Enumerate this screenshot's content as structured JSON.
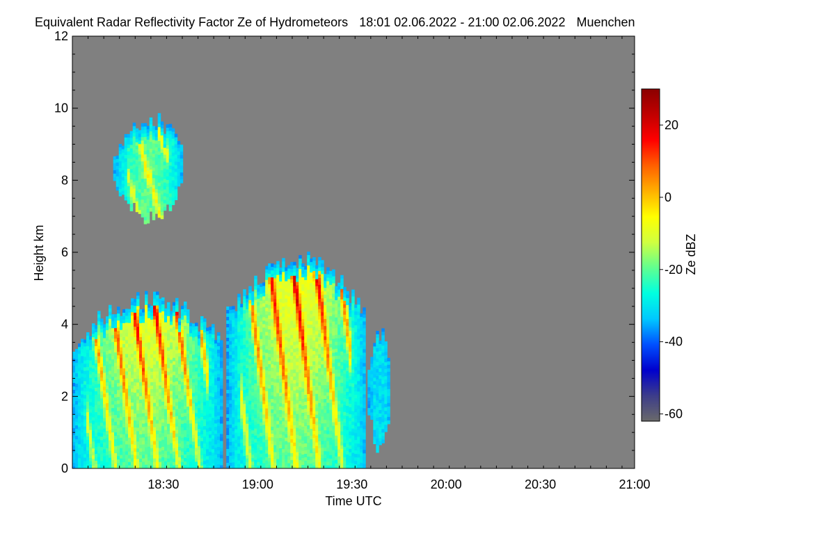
{
  "header": {
    "title": "Equivalent Radar Reflectivity Factor Ze of Hydrometeors",
    "time_range": "18:01 02.06.2022 - 21:00 02.06.2022",
    "location": "Muenchen"
  },
  "colors": {
    "background": "#ffffff",
    "no_signal": "#808080",
    "colormap": [
      "#6a6a6a",
      "#3c3c8a",
      "#0000cd",
      "#0050ff",
      "#00c8ff",
      "#00ffe0",
      "#60ff90",
      "#d0ff40",
      "#ffff00",
      "#ffb000",
      "#ff6000",
      "#ff0000",
      "#c00000",
      "#8b0000"
    ]
  },
  "chart_data": {
    "type": "heatmap",
    "title": "Equivalent Radar Reflectivity Factor Ze of Hydrometeors",
    "xlabel": "Time UTC",
    "ylabel": "Height km",
    "colorbar_label": "Ze dBZ",
    "x_ticks": [
      "18:30",
      "19:00",
      "19:30",
      "20:00",
      "20:30",
      "21:00"
    ],
    "x_range": [
      "18:01",
      "21:00"
    ],
    "y_ticks": [
      0,
      2,
      4,
      6,
      8,
      10,
      12
    ],
    "ylim": [
      0,
      12
    ],
    "colorbar_ticks": [
      20,
      0,
      -20,
      -40,
      -60
    ],
    "colorbar_range": [
      -62,
      30
    ],
    "echo_regions": [
      {
        "name": "upper cloud",
        "t_start": "18:14",
        "t_end": "18:36",
        "h_bottom": 7.0,
        "h_top": 9.7,
        "max_dbz": -5
      },
      {
        "name": "precipitation cell 1",
        "t_start": "18:01",
        "t_end": "18:48",
        "h_bottom": 0,
        "h_top": 4.7,
        "max_dbz": 22
      },
      {
        "name": "precipitation cell 2",
        "t_start": "18:50",
        "t_end": "19:34",
        "h_bottom": 0,
        "h_top": 5.8,
        "max_dbz": 25
      },
      {
        "name": "weak echo",
        "t_start": "19:35",
        "t_end": "19:42",
        "h_bottom": 0.6,
        "h_top": 3.7,
        "max_dbz": -30
      }
    ]
  }
}
